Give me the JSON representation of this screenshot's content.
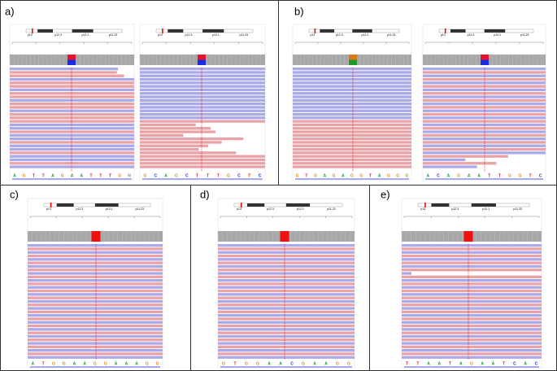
{
  "panels": [
    {
      "label": "a)",
      "cytobands": [
        "p13",
        "p12.3",
        "p12.1",
        "p11.23"
      ],
      "sequence": [
        "A",
        "G",
        "T",
        "T",
        "A",
        "G",
        "A",
        "A",
        "T",
        "T",
        "T",
        "G",
        "N"
      ]
    },
    {
      "cytobands": [
        "p13",
        "p12.3",
        "p12.1",
        "p11.23"
      ],
      "sequence": [
        "G",
        "C",
        "A",
        "G",
        "C",
        "T",
        "T",
        "T",
        "G",
        "C",
        "T",
        "C"
      ]
    },
    {
      "label": "b)",
      "cytobands": [
        "p13",
        "p12.3",
        "p12.2",
        "p11.23"
      ],
      "sequence": [
        "G",
        "T",
        "G",
        "A",
        "G",
        "A",
        "G",
        "G",
        "T",
        "A",
        "G",
        "G",
        "G"
      ]
    },
    {
      "cytobands": [
        "p13",
        "p12.3",
        "p12.1",
        "p11.23"
      ],
      "sequence": [
        "A",
        "C",
        "A",
        "G",
        "A",
        "A",
        "T",
        "T",
        "G",
        "G",
        "T",
        "C"
      ]
    },
    {
      "label": "c)",
      "cytobands": [
        "p13",
        "p12.3",
        "p12.1",
        "p11.23"
      ],
      "sequence": [
        "A",
        "T",
        "G",
        "G",
        "A",
        "A",
        "G",
        "G",
        "A",
        "A",
        "A",
        "G",
        "G"
      ]
    },
    {
      "label": "d)",
      "cytobands": [
        "p13",
        "p12.3",
        "p12.2",
        "p11.23"
      ],
      "sequence": [
        "G",
        "T",
        "G",
        "G",
        "A",
        "A",
        "C",
        "G",
        "A",
        "A",
        "G",
        "G"
      ]
    },
    {
      "label": "e)",
      "cytobands": [
        "p13",
        "p12.3",
        "p12.1",
        "p11.23"
      ],
      "sequence": [
        "T",
        "T",
        "A",
        "A",
        "T",
        "A",
        "G",
        "A",
        "A",
        "T",
        "C",
        "A",
        "C"
      ]
    }
  ]
}
